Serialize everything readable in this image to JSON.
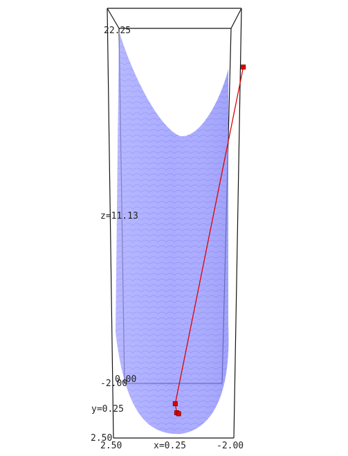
{
  "chart_data": {
    "type": "surface3d",
    "title": "",
    "surface": {
      "expression": "z = x^2 + 3*y^2 (approx.)",
      "x_range": [
        -2.0,
        2.5
      ],
      "y_range": [
        -2.0,
        2.5
      ],
      "z_range": [
        0.0,
        22.25
      ],
      "color": "#8a8cff",
      "opacity": 0.7
    },
    "path": {
      "name": "",
      "color": "#dd0000",
      "points": [
        {
          "x": -2.0,
          "y": 2.3,
          "z": 19.9
        },
        {
          "x": 0.2,
          "y": 0.3,
          "z": 0.4
        },
        {
          "x": 0.1,
          "y": 0.05,
          "z": 0.02
        },
        {
          "x": 0.02,
          "y": 0.0,
          "z": 0.0
        }
      ]
    },
    "axes": {
      "x_ticks": [
        "2.50",
        "x=0.25",
        "-2.00"
      ],
      "y_ticks": [
        "2.50",
        "y=0.25",
        "-2.00"
      ],
      "z_ticks": [
        "0.00",
        "z=11.13",
        "22.25"
      ]
    },
    "grid": false,
    "bounding_box": true
  }
}
